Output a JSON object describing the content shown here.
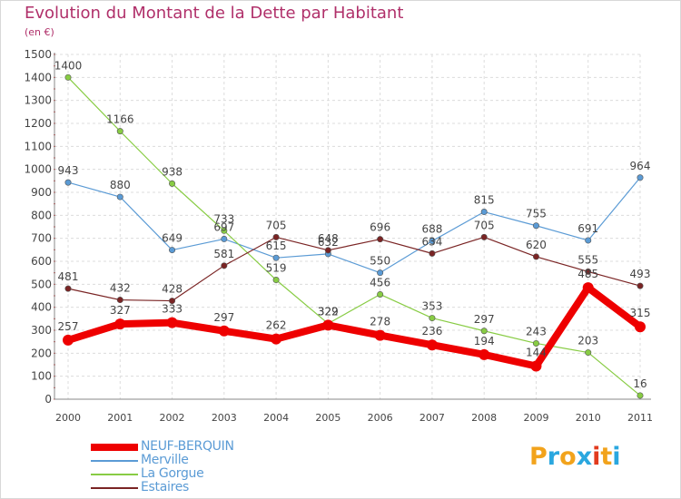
{
  "title": "Evolution du Montant de la Dette par Habitant",
  "subtitle": "(en €)",
  "logo": {
    "letters": [
      "P",
      "r",
      "o",
      "x",
      "i",
      "t",
      "i"
    ],
    "colors": [
      "#f2a31c",
      "#2aa7df",
      "#f2a31c",
      "#2aa7df",
      "#e23b1e",
      "#f2a31c",
      "#2aa7df"
    ]
  },
  "chart_data": {
    "type": "line",
    "title": "Evolution du Montant de la Dette par Habitant",
    "subtitle": "(en €)",
    "xlabel": "",
    "ylabel": "",
    "categories": [
      "2000",
      "2001",
      "2002",
      "2003",
      "2004",
      "2005",
      "2006",
      "2007",
      "2008",
      "2009",
      "2010",
      "2011"
    ],
    "ylim": [
      0,
      1500
    ],
    "yticks": [
      "0",
      "100",
      "200",
      "300",
      "400",
      "500",
      "600",
      "700",
      "800",
      "900",
      "1000",
      "1100",
      "1200",
      "1300",
      "1400",
      "1500"
    ],
    "grid": true,
    "legend_position": "bottom-left",
    "series": [
      {
        "name": "NEUF-BERQUIN",
        "color": "#ee0000",
        "values": [
          257,
          327,
          333,
          297,
          262,
          322,
          278,
          236,
          194,
          144,
          485,
          315
        ],
        "labels": [
          "257",
          "327",
          "333",
          "297",
          "262",
          "322",
          "278",
          "236",
          "194",
          "144",
          "485",
          "315"
        ]
      },
      {
        "name": "Merville",
        "color": "#5b9bd5",
        "values": [
          943,
          880,
          649,
          697,
          615,
          632,
          550,
          688,
          815,
          755,
          691,
          964
        ],
        "labels": [
          "943",
          "880",
          "649",
          "697",
          "615",
          "632",
          "550",
          "688",
          "815",
          "755",
          "691",
          "964"
        ]
      },
      {
        "name": "La Gorgue",
        "color": "#88cc44",
        "values": [
          1400,
          1166,
          938,
          733,
          519,
          329,
          456,
          353,
          297,
          243,
          203,
          16
        ],
        "labels": [
          "1400",
          "1166",
          "938",
          "733",
          "519",
          "329",
          "456",
          "353",
          "297",
          "243",
          "203",
          "16"
        ]
      },
      {
        "name": "Estaires",
        "color": "#7a2424",
        "values": [
          481,
          432,
          428,
          581,
          705,
          648,
          696,
          634,
          705,
          620,
          555,
          493
        ],
        "labels": [
          "481",
          "432",
          "428",
          "581",
          "705",
          "648",
          "696",
          "634",
          "705",
          "620",
          "555",
          "493"
        ]
      }
    ]
  }
}
